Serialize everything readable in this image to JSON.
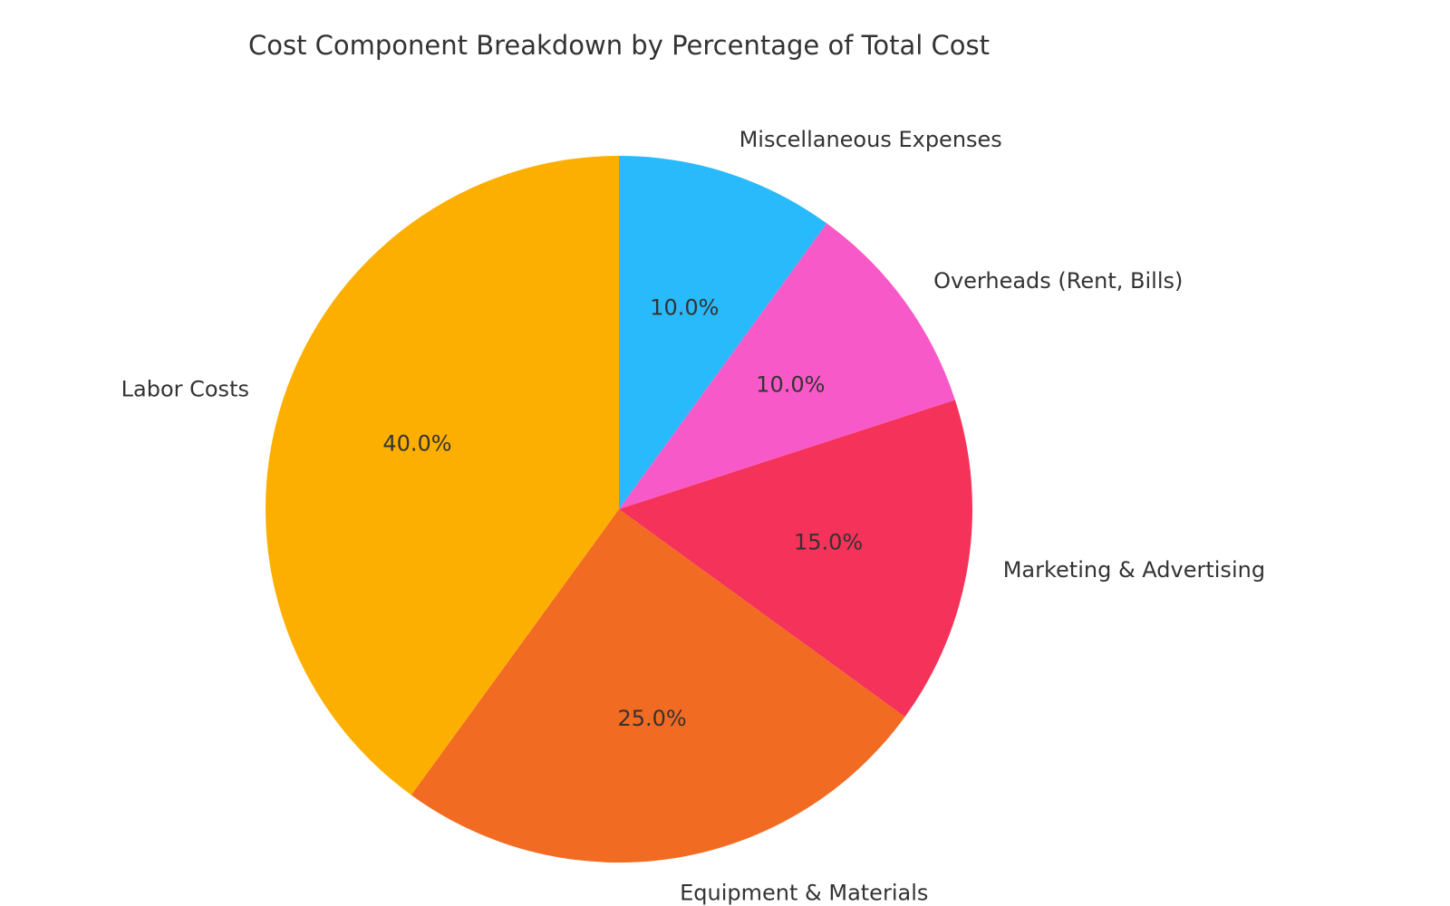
{
  "chart_data": {
    "type": "pie",
    "title": "Cost Component Breakdown by Percentage of Total Cost",
    "start_angle_deg": 90,
    "direction": "clockwise",
    "slices": [
      {
        "label": "Miscellaneous Expenses",
        "value": 10.0,
        "pct_label": "10.0%",
        "color": "#29BAFB"
      },
      {
        "label": "Overheads (Rent, Bills)",
        "value": 10.0,
        "pct_label": "10.0%",
        "color": "#F75AC8"
      },
      {
        "label": "Marketing & Advertising",
        "value": 15.0,
        "pct_label": "15.0%",
        "color": "#F53259"
      },
      {
        "label": "Equipment & Materials",
        "value": 25.0,
        "pct_label": "25.0%",
        "color": "#F26B22"
      },
      {
        "label": "Labor Costs",
        "value": 40.0,
        "pct_label": "40.0%",
        "color": "#FDAF00"
      }
    ]
  }
}
